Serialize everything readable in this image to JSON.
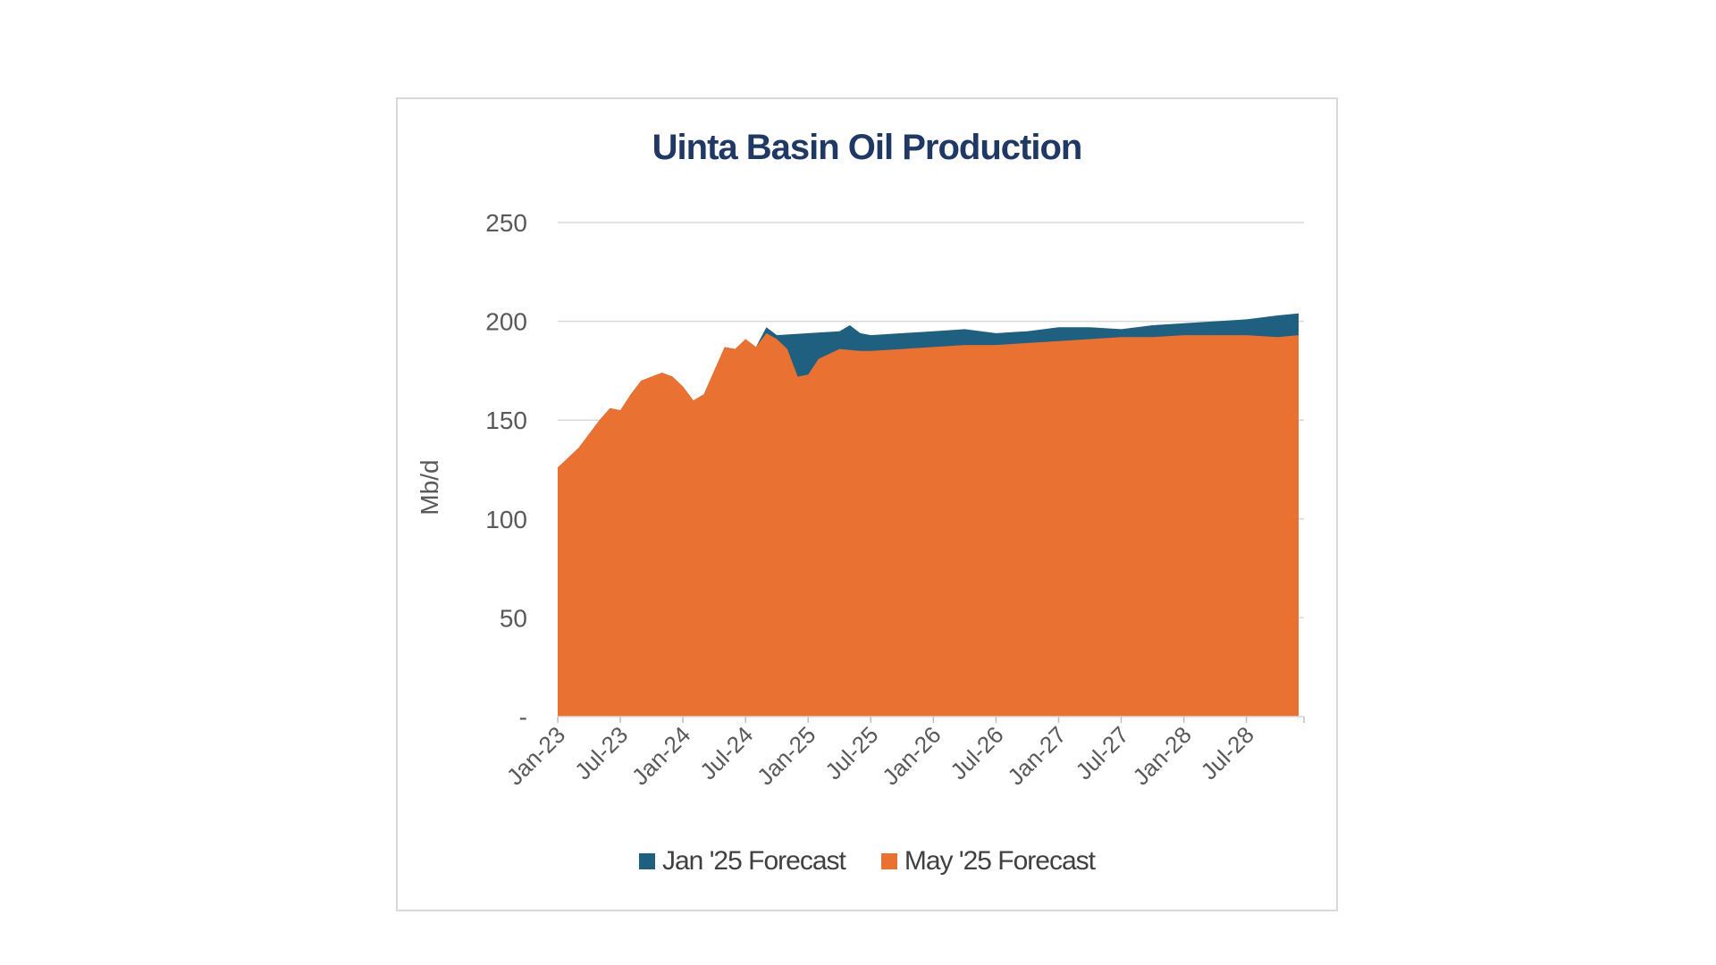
{
  "chart_data": {
    "type": "area",
    "title": "Uinta Basin Oil Production",
    "xlabel": "",
    "ylabel": "Mb/d",
    "ylim": [
      0,
      250
    ],
    "yticks": [
      0,
      50,
      100,
      150,
      200,
      250
    ],
    "ytick_labels": [
      "-",
      "50",
      "100",
      "150",
      "200",
      "250"
    ],
    "xlim": [
      "2023-01",
      "2028-12"
    ],
    "xtick_labels": [
      "Jan-23",
      "Jul-23",
      "Jan-24",
      "Jul-24",
      "Jan-25",
      "Jul-25",
      "Jan-26",
      "Jul-26",
      "Jan-27",
      "Jul-27",
      "Jan-28",
      "Jul-28"
    ],
    "grid": true,
    "legend_position": "bottom",
    "series": [
      {
        "name": "Jan '25 Forecast",
        "color": "#1f5f7f",
        "points": [
          [
            "2023-01",
            126
          ],
          [
            "2023-03",
            136
          ],
          [
            "2023-05",
            150
          ],
          [
            "2023-06",
            156
          ],
          [
            "2023-07",
            155
          ],
          [
            "2023-08",
            163
          ],
          [
            "2023-09",
            170
          ],
          [
            "2023-10",
            172
          ],
          [
            "2023-11",
            174
          ],
          [
            "2023-12",
            172
          ],
          [
            "2024-01",
            167
          ],
          [
            "2024-02",
            160
          ],
          [
            "2024-03",
            163
          ],
          [
            "2024-04",
            175
          ],
          [
            "2024-05",
            187
          ],
          [
            "2024-06",
            186
          ],
          [
            "2024-07",
            191
          ],
          [
            "2024-08",
            187
          ],
          [
            "2024-09",
            197
          ],
          [
            "2024-10",
            193
          ],
          [
            "2025-01",
            194
          ],
          [
            "2025-04",
            195
          ],
          [
            "2025-05",
            198
          ],
          [
            "2025-06",
            194
          ],
          [
            "2025-07",
            193
          ],
          [
            "2025-10",
            194
          ],
          [
            "2026-01",
            195
          ],
          [
            "2026-04",
            196
          ],
          [
            "2026-07",
            194
          ],
          [
            "2026-10",
            195
          ],
          [
            "2027-01",
            197
          ],
          [
            "2027-04",
            197
          ],
          [
            "2027-07",
            196
          ],
          [
            "2027-10",
            198
          ],
          [
            "2028-01",
            199
          ],
          [
            "2028-04",
            200
          ],
          [
            "2028-07",
            201
          ],
          [
            "2028-10",
            203
          ],
          [
            "2028-12",
            204
          ]
        ]
      },
      {
        "name": "May '25 Forecast",
        "color": "#e97132",
        "points": [
          [
            "2023-01",
            126
          ],
          [
            "2023-03",
            136
          ],
          [
            "2023-05",
            150
          ],
          [
            "2023-06",
            156
          ],
          [
            "2023-07",
            155
          ],
          [
            "2023-08",
            163
          ],
          [
            "2023-09",
            170
          ],
          [
            "2023-10",
            172
          ],
          [
            "2023-11",
            174
          ],
          [
            "2023-12",
            172
          ],
          [
            "2024-01",
            167
          ],
          [
            "2024-02",
            160
          ],
          [
            "2024-03",
            163
          ],
          [
            "2024-04",
            175
          ],
          [
            "2024-05",
            187
          ],
          [
            "2024-06",
            186
          ],
          [
            "2024-07",
            191
          ],
          [
            "2024-08",
            187
          ],
          [
            "2024-09",
            194
          ],
          [
            "2024-10",
            191
          ],
          [
            "2024-11",
            186
          ],
          [
            "2024-12",
            172
          ],
          [
            "2025-01",
            173
          ],
          [
            "2025-02",
            181
          ],
          [
            "2025-04",
            186
          ],
          [
            "2025-06",
            185
          ],
          [
            "2025-07",
            185
          ],
          [
            "2025-10",
            186
          ],
          [
            "2026-01",
            187
          ],
          [
            "2026-04",
            188
          ],
          [
            "2026-07",
            188
          ],
          [
            "2026-10",
            189
          ],
          [
            "2027-01",
            190
          ],
          [
            "2027-04",
            191
          ],
          [
            "2027-07",
            192
          ],
          [
            "2027-10",
            192
          ],
          [
            "2028-01",
            193
          ],
          [
            "2028-04",
            193
          ],
          [
            "2028-07",
            193
          ],
          [
            "2028-10",
            192
          ],
          [
            "2028-12",
            193
          ]
        ]
      }
    ]
  }
}
